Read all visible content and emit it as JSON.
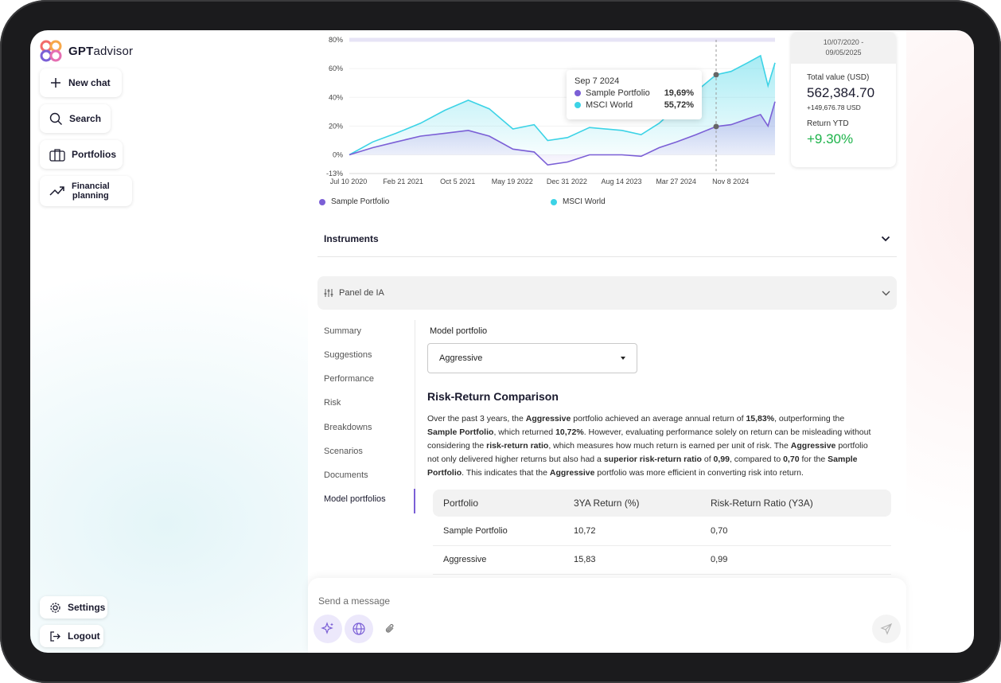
{
  "app": {
    "logo_prefix": "GPT",
    "logo_suffix": "advisor"
  },
  "sidebar": {
    "new_chat": "New chat",
    "search": "Search",
    "portfolios": "Portfolios",
    "financial_planning_1": "Financial",
    "financial_planning_2": "planning",
    "settings": "Settings",
    "logout": "Logout"
  },
  "chart_data": {
    "type": "line",
    "x_ticks": [
      "Jul 10 2020",
      "Feb 21 2021",
      "Oct 5 2021",
      "May 19 2022",
      "Dec 31 2022",
      "Aug 14 2023",
      "Mar 27 2024",
      "Nov 8 2024"
    ],
    "y_ticks": [
      "80%",
      "60%",
      "40%",
      "20%",
      "0%",
      "-13%"
    ],
    "ylim": [
      -13,
      80
    ],
    "x": [
      "2020-07-10",
      "2020-10-15",
      "2021-01-20",
      "2021-05-01",
      "2021-08-10",
      "2021-11-15",
      "2022-02-10",
      "2022-05-19",
      "2022-08-15",
      "2022-10-10",
      "2022-12-31",
      "2023-04-01",
      "2023-08-14",
      "2023-11-01",
      "2024-01-15",
      "2024-03-27",
      "2024-06-15",
      "2024-09-07",
      "2024-11-08",
      "2025-01-15",
      "2025-03-10",
      "2025-04-10",
      "2025-05-09"
    ],
    "series": [
      {
        "name": "Sample Portfolio",
        "color": "#7b5fd6",
        "values": [
          0,
          5,
          9,
          13,
          15,
          17,
          13,
          4,
          2,
          -7,
          -5,
          0,
          0,
          -1,
          5,
          9,
          14,
          19.69,
          21,
          25,
          28,
          20,
          37
        ]
      },
      {
        "name": "MSCI World",
        "color": "#3cd3e6",
        "values": [
          0,
          9,
          15,
          22,
          31,
          38,
          32,
          18,
          21,
          10,
          12,
          19,
          17,
          14,
          22,
          33,
          44,
          55.72,
          58,
          64,
          69,
          48,
          64
        ]
      }
    ],
    "tooltip": {
      "date": "Sep 7 2024",
      "rows": [
        {
          "name": "Sample Portfolio",
          "value": "19,69%"
        },
        {
          "name": "MSCI World",
          "value": "55,72%"
        }
      ]
    }
  },
  "stats": {
    "date_range_1": "10/07/2020 -",
    "date_range_2": "09/05/2025",
    "total_label": "Total value (USD)",
    "total_value": "562,384.70",
    "total_change": "+149,676.78 USD",
    "ytd_label": "Return YTD",
    "ytd_value": "+9.30%",
    "ytd_color": "#1db34a"
  },
  "instruments": {
    "label": "Instruments"
  },
  "panel": {
    "label": "Panel de IA"
  },
  "nav": [
    "Summary",
    "Suggestions",
    "Performance",
    "Risk",
    "Breakdowns",
    "Scenarios",
    "Documents",
    "Model portfolios"
  ],
  "model": {
    "label": "Model portfolio",
    "selected": "Aggressive"
  },
  "report": {
    "title": "Risk-Return Comparison",
    "p1": "Over the past 3 years, the ",
    "b1": "Aggressive",
    "p2": " portfolio achieved an average annual return of ",
    "b2": "15,83%",
    "p3": ", outperforming the ",
    "b3": "Sample Portfolio",
    "p4": ", which returned ",
    "b4": "10,72%",
    "p5": ". However, evaluating performance solely on return can be misleading without considering the ",
    "b5": "risk-return ratio",
    "p6": ", which measures how much return is earned per unit of risk. The ",
    "b6": "Aggressive",
    "p7": " portfolio not only delivered higher returns but also had a ",
    "b7": "superior risk-return ratio",
    "p8": " of ",
    "b8": "0,99",
    "p9": ", compared to ",
    "b9": "0,70",
    "p10": " for the ",
    "b10": "Sample Portfolio",
    "p11": ". This indicates that the ",
    "b11": "Aggressive",
    "p12": " portfolio was more efficient in converting risk into return."
  },
  "table": {
    "headers": [
      "Portfolio",
      "3YA Return (%)",
      "Risk-Return Ratio (Y3A)"
    ],
    "rows": [
      [
        "Sample Portfolio",
        "10,72",
        "0,70"
      ],
      [
        "Aggressive",
        "15,83",
        "0,99"
      ]
    ]
  },
  "composer": {
    "placeholder": "Send a message"
  }
}
